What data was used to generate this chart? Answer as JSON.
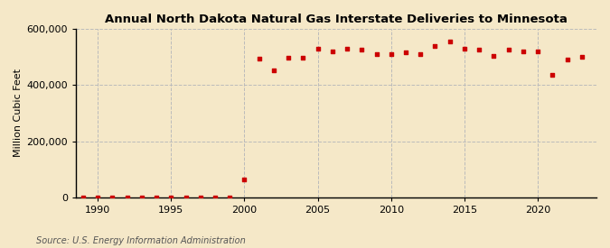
{
  "title": "Annual North Dakota Natural Gas Interstate Deliveries to Minnesota",
  "ylabel": "Million Cubic Feet",
  "source": "Source: U.S. Energy Information Administration",
  "background_color": "#f5e8c8",
  "plot_background_color": "#f5e8c8",
  "marker_color": "#cc0000",
  "grid_color": "#bbbbbb",
  "years": [
    1989,
    1990,
    1991,
    1992,
    1993,
    1994,
    1995,
    1996,
    1997,
    1998,
    1999,
    2000,
    2001,
    2002,
    2003,
    2004,
    2005,
    2006,
    2007,
    2008,
    2009,
    2010,
    2011,
    2012,
    2013,
    2014,
    2015,
    2016,
    2017,
    2018,
    2019,
    2020,
    2021,
    2022,
    2023
  ],
  "values": [
    800,
    700,
    600,
    500,
    600,
    700,
    800,
    900,
    800,
    900,
    700,
    65000,
    494000,
    452000,
    497000,
    497000,
    530000,
    520000,
    530000,
    525000,
    510000,
    510000,
    515000,
    510000,
    540000,
    555000,
    528000,
    525000,
    505000,
    525000,
    520000,
    520000,
    435000,
    490000,
    500000
  ],
  "ylim": [
    0,
    600000
  ],
  "yticks": [
    0,
    200000,
    400000,
    600000
  ],
  "xlim": [
    1988.5,
    2024
  ],
  "xticks": [
    1990,
    1995,
    2000,
    2005,
    2010,
    2015,
    2020
  ]
}
